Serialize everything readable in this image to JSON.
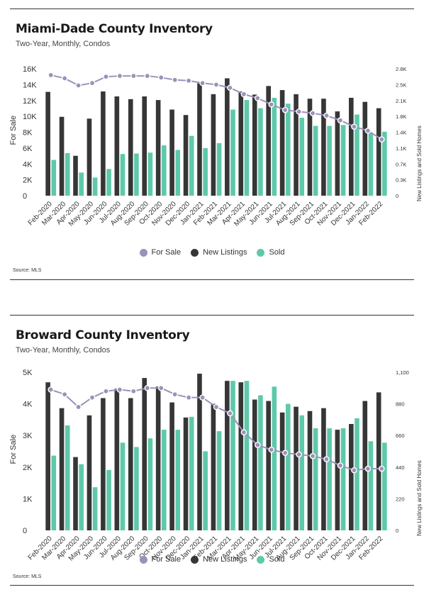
{
  "colors": {
    "for_sale": "#9d91b8",
    "new_listings": "#363636",
    "sold": "#5ec9aa"
  },
  "chart_data": [
    {
      "type": "bar",
      "title": "Miami-Dade County Inventory",
      "subtitle": "Two-Year, Monthly, Condos",
      "ylabel": "For Sale",
      "ylabel_right": "New Listings and Sold Homes",
      "source": "Source: MLS",
      "categories": [
        "Feb-2020",
        "Mar-2020",
        "Apr-2020",
        "May-2020",
        "Jun-2020",
        "Jul-2020",
        "Aug-2020",
        "Sep-2020",
        "Oct-2020",
        "Nov-2020",
        "Dec-2020",
        "Jan-2021",
        "Feb-2021",
        "Mar-2021",
        "Apr-2021",
        "May-2021",
        "Jun-2021",
        "Jul-2021",
        "Aug-2021",
        "Sep-2021",
        "Oct-2021",
        "Nov-2021",
        "Dec-2021",
        "Jan-2022",
        "Feb-2022"
      ],
      "ylim": [
        0,
        16000
      ],
      "ylim_right": [
        0,
        2800
      ],
      "yticks_left": [
        "0",
        "2K",
        "4K",
        "6K",
        "8K",
        "10K",
        "12K",
        "14K",
        "16K"
      ],
      "yticks_right": [
        "0",
        "0.3K",
        "0.7K",
        "1.1K",
        "1.4K",
        "1.8K",
        "2.1K",
        "2.5K",
        "2.8K"
      ],
      "series": [
        {
          "name": "For Sale",
          "kind": "line",
          "axis": "left",
          "values": [
            15200,
            14800,
            13900,
            14200,
            15000,
            15100,
            15100,
            15100,
            14900,
            14600,
            14500,
            14200,
            14000,
            13600,
            12800,
            12300,
            11500,
            10800,
            10600,
            10400,
            10100,
            9500,
            8700,
            8200,
            7100
          ]
        },
        {
          "name": "New Listings",
          "kind": "bar",
          "axis": "right",
          "values": [
            2290,
            1740,
            880,
            1700,
            2300,
            2190,
            2130,
            2190,
            2110,
            1900,
            1780,
            2480,
            2240,
            2590,
            2300,
            2230,
            2420,
            2330,
            2240,
            2140,
            2140,
            1860,
            2160,
            2070,
            1930
          ]
        },
        {
          "name": "Sold",
          "kind": "bar",
          "axis": "right",
          "values": [
            790,
            940,
            510,
            400,
            590,
            920,
            930,
            950,
            1110,
            1010,
            1320,
            1050,
            1160,
            1900,
            2110,
            1930,
            2160,
            2030,
            1720,
            1540,
            1540,
            1560,
            1790,
            1390,
            1410
          ]
        }
      ]
    },
    {
      "type": "bar",
      "title": "Broward County Inventory",
      "subtitle": "Two-Year, Monthly, Condos",
      "ylabel": "For Sale",
      "ylabel_right": "New Listings and Sold Homes",
      "source": "Source: MLS",
      "categories": [
        "Feb-2020",
        "Mar-2020",
        "Apr-2020",
        "May-2020",
        "Jun-2020",
        "Jul-2020",
        "Aug-2020",
        "Sep-2020",
        "Oct-2020",
        "Nov-2020",
        "Dec-2020",
        "Jan-2021",
        "Feb-2021",
        "Mar-2021",
        "Apr-2021",
        "May-2021",
        "Jun-2021",
        "Jul-2021",
        "Aug-2021",
        "Sep-2021",
        "Oct-2021",
        "Nov-2021",
        "Dec-2021",
        "Jan-2022",
        "Feb-2022"
      ],
      "ylim": [
        0,
        5000
      ],
      "ylim_right": [
        0,
        1100
      ],
      "yticks_left": [
        "0",
        "1K",
        "2K",
        "3K",
        "4K",
        "5K"
      ],
      "yticks_right": [
        "0",
        "220",
        "440",
        "660",
        "880",
        "1,100"
      ],
      "series": [
        {
          "name": "For Sale",
          "kind": "line",
          "axis": "left",
          "values": [
            4450,
            4300,
            3900,
            4200,
            4400,
            4450,
            4400,
            4500,
            4500,
            4300,
            4200,
            4200,
            3900,
            3700,
            3100,
            2700,
            2550,
            2450,
            2400,
            2350,
            2250,
            2050,
            1900,
            1950,
            1950
          ]
        },
        {
          "name": "New Listings",
          "kind": "bar",
          "axis": "right",
          "values": [
            1030,
            850,
            510,
            800,
            920,
            985,
            920,
            1060,
            1000,
            890,
            785,
            1090,
            880,
            1040,
            1030,
            910,
            900,
            820,
            860,
            830,
            850,
            700,
            740,
            900,
            960
          ]
        },
        {
          "name": "Sold",
          "kind": "bar",
          "axis": "right",
          "values": [
            520,
            730,
            460,
            300,
            420,
            610,
            580,
            640,
            700,
            700,
            790,
            550,
            690,
            1040,
            1040,
            940,
            1000,
            880,
            800,
            710,
            710,
            710,
            780,
            620,
            610
          ]
        }
      ]
    }
  ]
}
